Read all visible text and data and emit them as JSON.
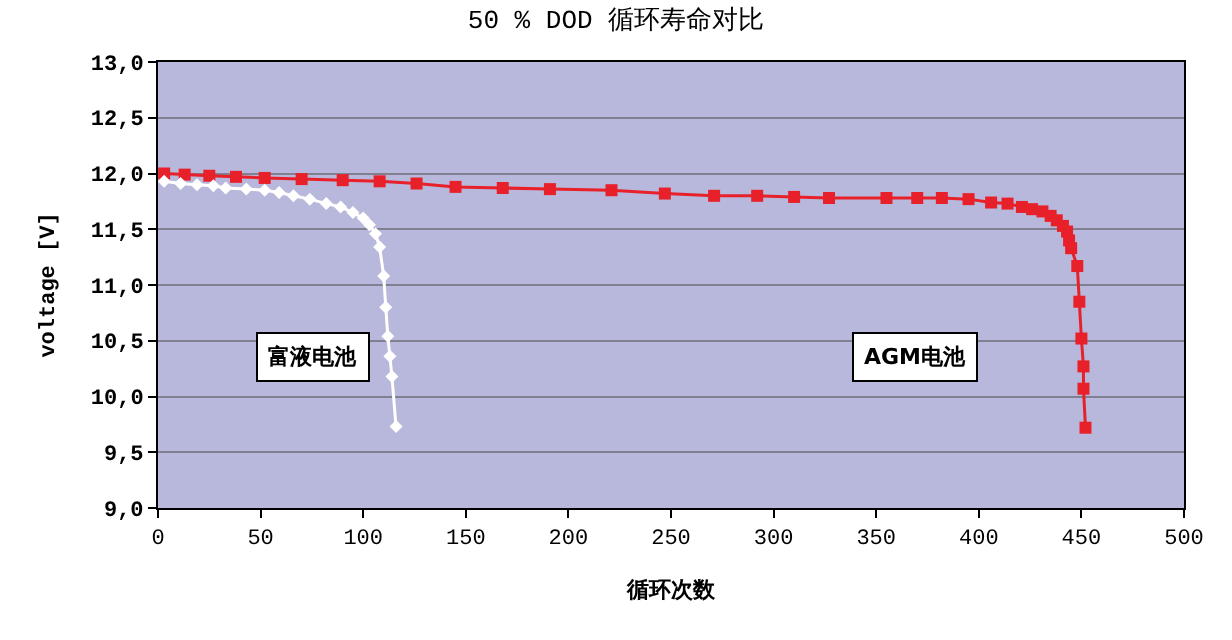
{
  "chart_data": {
    "type": "line",
    "title": "50 % DOD 循环寿命对比",
    "xlabel": "循环次数",
    "ylabel": "voltage [V]",
    "xlim": [
      0,
      500
    ],
    "xticks": [
      0,
      50,
      100,
      150,
      200,
      250,
      300,
      350,
      400,
      450,
      500
    ],
    "ylim": [
      9.0,
      13.0
    ],
    "yticks": [
      {
        "value": 9.0,
        "label": "9,0"
      },
      {
        "value": 9.5,
        "label": "9,5"
      },
      {
        "value": 10.0,
        "label": "10,0"
      },
      {
        "value": 10.5,
        "label": "10,5"
      },
      {
        "value": 11.0,
        "label": "11,0"
      },
      {
        "value": 11.5,
        "label": "11,5"
      },
      {
        "value": 12.0,
        "label": "12,0"
      },
      {
        "value": 12.5,
        "label": "12,5"
      },
      {
        "value": 13.0,
        "label": "13,0"
      }
    ],
    "grid": "y",
    "annotations": [
      "富液电池",
      "AGM电池"
    ],
    "series": [
      {
        "color": "#e8202a",
        "marker": "square",
        "x": [
          3,
          13,
          25,
          38,
          52,
          70,
          90,
          108,
          126,
          145,
          168,
          191,
          221,
          247,
          271,
          292,
          310,
          327,
          355,
          370,
          382,
          395,
          406,
          414,
          421,
          426,
          431,
          435,
          438,
          441,
          443,
          444,
          445,
          448,
          449,
          450,
          451,
          451,
          452
        ],
        "values": [
          12.0,
          11.99,
          11.98,
          11.97,
          11.96,
          11.95,
          11.94,
          11.93,
          11.91,
          11.88,
          11.87,
          11.86,
          11.85,
          11.82,
          11.8,
          11.8,
          11.79,
          11.78,
          11.78,
          11.78,
          11.78,
          11.77,
          11.74,
          11.73,
          11.7,
          11.68,
          11.66,
          11.62,
          11.58,
          11.53,
          11.48,
          11.4,
          11.33,
          11.17,
          10.85,
          10.52,
          10.27,
          10.07,
          9.72
        ]
      },
      {
        "color": "#ffffff",
        "marker": "diamond",
        "x": [
          3,
          11,
          19,
          27,
          33,
          43,
          52,
          59,
          66,
          74,
          82,
          89,
          95,
          100,
          103,
          106,
          108,
          110,
          111,
          112,
          113,
          114,
          116
        ],
        "values": [
          11.93,
          11.91,
          11.9,
          11.89,
          11.87,
          11.86,
          11.85,
          11.83,
          11.8,
          11.77,
          11.73,
          11.7,
          11.65,
          11.6,
          11.54,
          11.46,
          11.34,
          11.08,
          10.8,
          10.54,
          10.36,
          10.18,
          9.73
        ]
      }
    ]
  }
}
